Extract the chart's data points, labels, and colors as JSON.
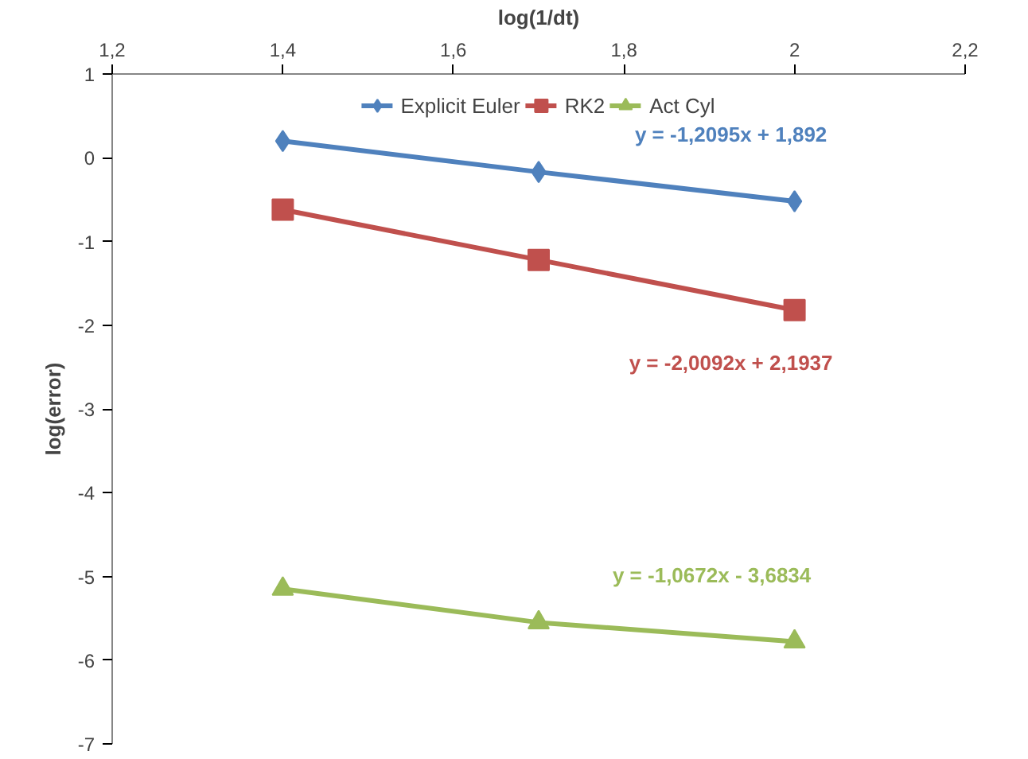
{
  "chart_data": {
    "type": "line",
    "xlabel": "log(1/dt)",
    "ylabel": "log(error)",
    "x": [
      1.4,
      1.7,
      2.0
    ],
    "series": [
      {
        "name": "Explicit Euler",
        "color": "#4f81bd",
        "marker": "diamond",
        "values": [
          0.2,
          -0.17,
          -0.52
        ]
      },
      {
        "name": "RK2",
        "color": "#c0504d",
        "marker": "square",
        "values": [
          -0.62,
          -1.22,
          -1.82
        ]
      },
      {
        "name": "Act Cyl",
        "color": "#9bbb59",
        "marker": "triangle",
        "values": [
          -5.15,
          -5.55,
          -5.78
        ]
      }
    ],
    "xlim": [
      1.2,
      2.2
    ],
    "xticks": [
      {
        "value": 1.2,
        "label": "1,2"
      },
      {
        "value": 1.4,
        "label": "1,4"
      },
      {
        "value": 1.6,
        "label": "1,6"
      },
      {
        "value": 1.8,
        "label": "1,8"
      },
      {
        "value": 2.0,
        "label": "2"
      },
      {
        "value": 2.2,
        "label": "2,2"
      }
    ],
    "ylim": [
      -7,
      1
    ],
    "yticks": [
      -7,
      -6,
      -5,
      -4,
      -3,
      -2,
      -1,
      0,
      1
    ],
    "annotations": [
      "y = -1,2095x + 1,892",
      "y = -2,0092x + 2,1937",
      "y = -1,0672x - 3,6834"
    ],
    "grid": false,
    "legend": "top",
    "line_style": "solid"
  }
}
